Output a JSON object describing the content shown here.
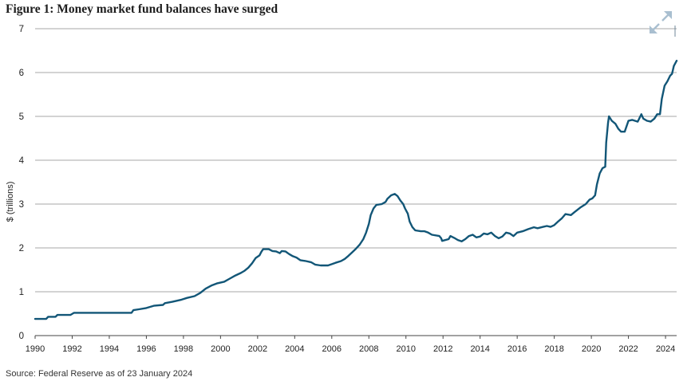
{
  "figure": {
    "title": "Figure 1: Money market fund balances have surged",
    "source": "Source: Federal Reserve as of 23 January 2024"
  },
  "icons": {
    "expand": "expand-arrows-icon"
  },
  "colors": {
    "line": "#125677",
    "grid": "#8a8a8a",
    "axis": "#444444",
    "icon": "#a9bfd0"
  },
  "chart_data": {
    "type": "line",
    "title": "Figure 1: Money market fund balances have surged",
    "xlabel": "",
    "ylabel": "$ (trillions)",
    "xlim": [
      1990,
      2024.6
    ],
    "ylim": [
      0,
      7
    ],
    "grid": "horizontal",
    "x_ticks": [
      "1990",
      "1992",
      "1994",
      "1996",
      "1998",
      "2000",
      "2002",
      "2004",
      "2006",
      "2008",
      "2010",
      "2012",
      "2014",
      "2016",
      "2018",
      "2020",
      "2022",
      "2024"
    ],
    "y_ticks": [
      "0",
      "1",
      "2",
      "3",
      "4",
      "5",
      "6",
      "7"
    ],
    "series": [
      {
        "color": "#125677",
        "points": [
          [
            1990.0,
            0.38
          ],
          [
            1990.6,
            0.38
          ],
          [
            1990.7,
            0.43
          ],
          [
            1991.1,
            0.43
          ],
          [
            1991.2,
            0.47
          ],
          [
            1991.9,
            0.47
          ],
          [
            1992.1,
            0.52
          ],
          [
            1995.0,
            0.52
          ],
          [
            1995.2,
            0.52
          ],
          [
            1995.3,
            0.58
          ],
          [
            1995.6,
            0.6
          ],
          [
            1996.0,
            0.63
          ],
          [
            1996.4,
            0.68
          ],
          [
            1996.9,
            0.7
          ],
          [
            1997.0,
            0.74
          ],
          [
            1997.4,
            0.77
          ],
          [
            1997.9,
            0.82
          ],
          [
            1998.2,
            0.86
          ],
          [
            1998.6,
            0.9
          ],
          [
            1998.9,
            0.97
          ],
          [
            1999.2,
            1.07
          ],
          [
            1999.5,
            1.14
          ],
          [
            1999.8,
            1.19
          ],
          [
            2000.2,
            1.23
          ],
          [
            2000.5,
            1.3
          ],
          [
            2000.8,
            1.37
          ],
          [
            2001.1,
            1.43
          ],
          [
            2001.3,
            1.48
          ],
          [
            2001.5,
            1.55
          ],
          [
            2001.7,
            1.65
          ],
          [
            2001.9,
            1.77
          ],
          [
            2002.1,
            1.83
          ],
          [
            2002.2,
            1.91
          ],
          [
            2002.3,
            1.97
          ],
          [
            2002.6,
            1.97
          ],
          [
            2002.8,
            1.93
          ],
          [
            2003.0,
            1.92
          ],
          [
            2003.2,
            1.88
          ],
          [
            2003.3,
            1.93
          ],
          [
            2003.5,
            1.92
          ],
          [
            2003.7,
            1.86
          ],
          [
            2003.9,
            1.81
          ],
          [
            2004.1,
            1.78
          ],
          [
            2004.3,
            1.72
          ],
          [
            2004.6,
            1.7
          ],
          [
            2004.9,
            1.67
          ],
          [
            2005.1,
            1.62
          ],
          [
            2005.4,
            1.6
          ],
          [
            2005.8,
            1.6
          ],
          [
            2006.0,
            1.63
          ],
          [
            2006.2,
            1.66
          ],
          [
            2006.5,
            1.7
          ],
          [
            2006.7,
            1.75
          ],
          [
            2006.9,
            1.82
          ],
          [
            2007.1,
            1.9
          ],
          [
            2007.3,
            1.98
          ],
          [
            2007.5,
            2.07
          ],
          [
            2007.7,
            2.2
          ],
          [
            2007.85,
            2.35
          ],
          [
            2008.0,
            2.55
          ],
          [
            2008.1,
            2.75
          ],
          [
            2008.25,
            2.9
          ],
          [
            2008.4,
            2.98
          ],
          [
            2008.7,
            3.0
          ],
          [
            2008.9,
            3.05
          ],
          [
            2009.0,
            3.12
          ],
          [
            2009.2,
            3.2
          ],
          [
            2009.4,
            3.23
          ],
          [
            2009.55,
            3.18
          ],
          [
            2009.7,
            3.08
          ],
          [
            2009.85,
            3.0
          ],
          [
            2009.95,
            2.9
          ],
          [
            2010.1,
            2.78
          ],
          [
            2010.2,
            2.6
          ],
          [
            2010.35,
            2.47
          ],
          [
            2010.5,
            2.4
          ],
          [
            2010.8,
            2.38
          ],
          [
            2011.0,
            2.38
          ],
          [
            2011.2,
            2.35
          ],
          [
            2011.4,
            2.3
          ],
          [
            2011.8,
            2.27
          ],
          [
            2011.9,
            2.22
          ],
          [
            2011.95,
            2.16
          ],
          [
            2012.3,
            2.2
          ],
          [
            2012.4,
            2.27
          ],
          [
            2012.6,
            2.23
          ],
          [
            2012.8,
            2.18
          ],
          [
            2013.0,
            2.15
          ],
          [
            2013.2,
            2.2
          ],
          [
            2013.4,
            2.27
          ],
          [
            2013.6,
            2.3
          ],
          [
            2013.8,
            2.24
          ],
          [
            2014.0,
            2.26
          ],
          [
            2014.2,
            2.33
          ],
          [
            2014.4,
            2.31
          ],
          [
            2014.6,
            2.35
          ],
          [
            2014.8,
            2.27
          ],
          [
            2015.0,
            2.22
          ],
          [
            2015.2,
            2.26
          ],
          [
            2015.4,
            2.35
          ],
          [
            2015.6,
            2.33
          ],
          [
            2015.8,
            2.27
          ],
          [
            2016.0,
            2.35
          ],
          [
            2016.3,
            2.38
          ],
          [
            2016.6,
            2.43
          ],
          [
            2016.9,
            2.47
          ],
          [
            2017.1,
            2.45
          ],
          [
            2017.4,
            2.48
          ],
          [
            2017.6,
            2.5
          ],
          [
            2017.8,
            2.48
          ],
          [
            2018.0,
            2.52
          ],
          [
            2018.2,
            2.6
          ],
          [
            2018.4,
            2.67
          ],
          [
            2018.6,
            2.77
          ],
          [
            2018.9,
            2.75
          ],
          [
            2019.1,
            2.82
          ],
          [
            2019.4,
            2.92
          ],
          [
            2019.7,
            3.0
          ],
          [
            2019.9,
            3.1
          ],
          [
            2020.05,
            3.13
          ],
          [
            2020.2,
            3.2
          ],
          [
            2020.3,
            3.45
          ],
          [
            2020.45,
            3.7
          ],
          [
            2020.6,
            3.82
          ],
          [
            2020.75,
            3.85
          ],
          [
            2020.8,
            4.4
          ],
          [
            2020.9,
            4.85
          ],
          [
            2020.95,
            5.0
          ],
          [
            2021.1,
            4.9
          ],
          [
            2021.3,
            4.83
          ],
          [
            2021.45,
            4.72
          ],
          [
            2021.6,
            4.65
          ],
          [
            2021.8,
            4.65
          ],
          [
            2022.0,
            4.9
          ],
          [
            2022.2,
            4.92
          ],
          [
            2022.5,
            4.88
          ],
          [
            2022.7,
            5.05
          ],
          [
            2022.8,
            4.95
          ],
          [
            2023.0,
            4.9
          ],
          [
            2023.2,
            4.88
          ],
          [
            2023.4,
            4.95
          ],
          [
            2023.55,
            5.05
          ],
          [
            2023.7,
            5.05
          ],
          [
            2023.8,
            5.4
          ],
          [
            2023.95,
            5.7
          ],
          [
            2024.1,
            5.8
          ],
          [
            2024.25,
            5.93
          ],
          [
            2024.35,
            5.97
          ],
          [
            2024.45,
            6.15
          ],
          [
            2024.6,
            6.27
          ]
        ]
      }
    ]
  }
}
